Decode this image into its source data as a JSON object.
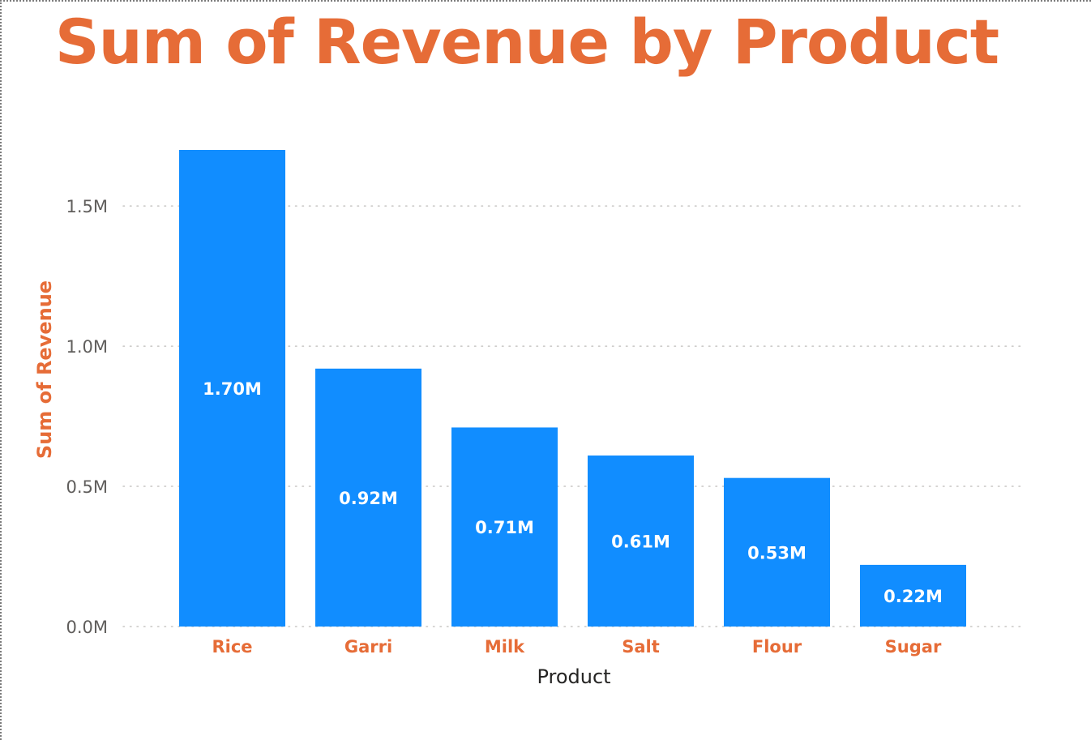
{
  "colors": {
    "title": "#E66C37",
    "bar": "#118DFF",
    "tick_label": "#605E5C",
    "category_label": "#E66C37",
    "axis_title_x": "#252423",
    "axis_title_y": "#E66C37",
    "data_label": "#FFFFFF",
    "gridline": "#C8C6C4"
  },
  "chart_data": {
    "type": "bar",
    "title": "Sum of Revenue by Product",
    "xlabel": "Product",
    "ylabel": "Sum of Revenue",
    "categories": [
      "Rice",
      "Garri",
      "Milk",
      "Salt",
      "Flour",
      "Sugar"
    ],
    "values": [
      1.7,
      0.92,
      0.71,
      0.61,
      0.53,
      0.22
    ],
    "value_unit": "M",
    "data_labels": [
      "1.70M",
      "0.92M",
      "0.71M",
      "0.61M",
      "0.53M",
      "0.22M"
    ],
    "yticks": [
      0.0,
      0.5,
      1.0,
      1.5
    ],
    "ytick_labels": [
      "0.0M",
      "0.5M",
      "1.0M",
      "1.5M"
    ],
    "ylim": [
      0,
      1.7
    ],
    "grid": true,
    "legend": "none"
  }
}
